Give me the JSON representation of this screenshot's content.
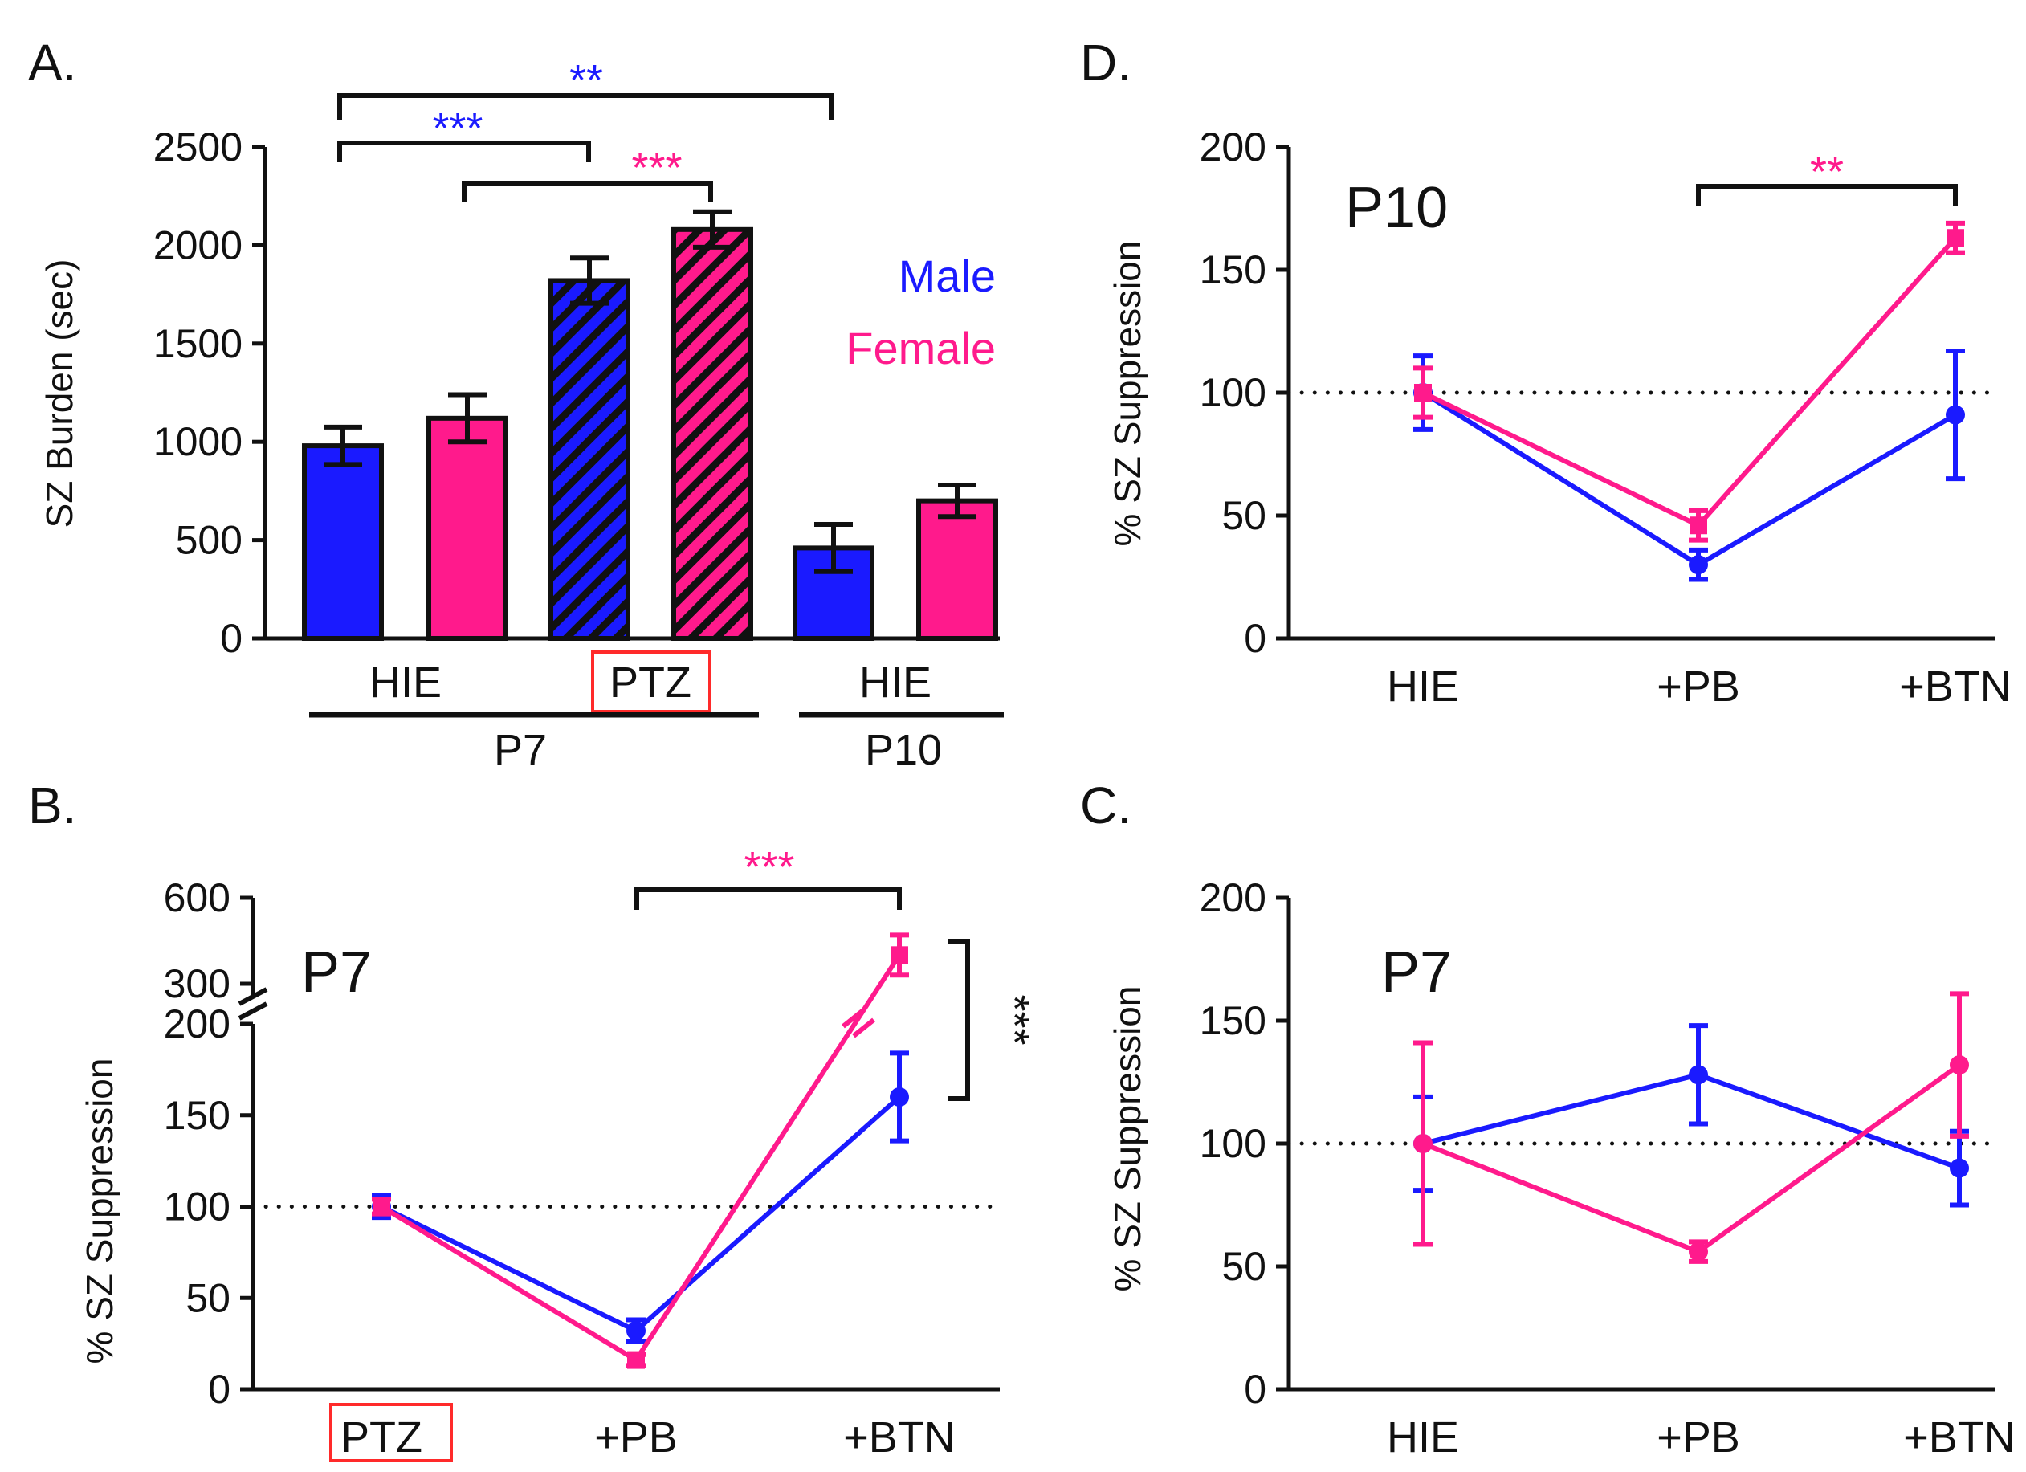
{
  "colors": {
    "male": "#1a1aff",
    "female": "#ff1a8c",
    "axis": "#111111",
    "highlight": "#ff2a2a"
  },
  "chart_data": [
    {
      "panel": "A.",
      "type": "bar",
      "ylabel": "SZ Burden (sec)",
      "ylim": [
        0,
        2500
      ],
      "yticks": [
        0,
        500,
        1000,
        1500,
        2000,
        2500
      ],
      "legend": {
        "male": "Male",
        "female": "Female",
        "placement": "right"
      },
      "bars": [
        {
          "group": "HIE",
          "age": "P7",
          "sex": "male",
          "value": 980,
          "err": 95,
          "hatched": false
        },
        {
          "group": "HIE",
          "age": "P7",
          "sex": "female",
          "value": 1120,
          "err": 120,
          "hatched": false
        },
        {
          "group": "PTZ",
          "age": "P7",
          "sex": "male",
          "value": 1820,
          "err": 115,
          "hatched": true
        },
        {
          "group": "PTZ",
          "age": "P7",
          "sex": "female",
          "value": 2080,
          "err": 90,
          "hatched": true
        },
        {
          "group": "HIE",
          "age": "P10",
          "sex": "male",
          "value": 460,
          "err": 120,
          "hatched": false
        },
        {
          "group": "HIE",
          "age": "P10",
          "sex": "female",
          "value": 700,
          "err": 80,
          "hatched": false
        }
      ],
      "group_labels": [
        "HIE",
        "PTZ",
        "HIE"
      ],
      "age_labels": [
        "P7",
        "P10"
      ],
      "significance": [
        {
          "label": "**",
          "color": "male"
        },
        {
          "label": "***",
          "color": "male"
        },
        {
          "label": "***",
          "color": "female"
        }
      ]
    },
    {
      "panel": "B.",
      "type": "line",
      "inset_label": "P7",
      "ylabel": "% SZ Suppression",
      "ylim": [
        0,
        200
      ],
      "break_ticks": [
        300,
        600
      ],
      "yticks": [
        0,
        50,
        100,
        150,
        200
      ],
      "categories": [
        "PTZ",
        "+PB",
        "+BTN"
      ],
      "reference_line": 100,
      "series": [
        {
          "name": "Male",
          "color": "male",
          "values": [
            100,
            32,
            160
          ],
          "err": [
            6,
            6,
            24
          ]
        },
        {
          "name": "Female",
          "color": "female",
          "values": [
            100,
            16,
            400
          ],
          "err": [
            4,
            3,
            70
          ]
        }
      ],
      "significance": [
        {
          "label": "***",
          "color": "female"
        },
        {
          "label": "***",
          "color": "axis"
        }
      ]
    },
    {
      "panel": "D.",
      "type": "line",
      "inset_label": "P10",
      "ylabel": "% SZ Suppression",
      "ylim": [
        0,
        200
      ],
      "yticks": [
        0,
        50,
        100,
        150,
        200
      ],
      "categories": [
        "HIE",
        "+PB",
        "+BTN"
      ],
      "reference_line": 100,
      "series": [
        {
          "name": "Male",
          "color": "male",
          "values": [
            100,
            30,
            91
          ],
          "err": [
            15,
            6,
            26
          ]
        },
        {
          "name": "Female",
          "color": "female",
          "values": [
            100,
            46,
            163
          ],
          "err": [
            10,
            6,
            6
          ]
        }
      ],
      "significance": [
        {
          "label": "**",
          "color": "female"
        }
      ]
    },
    {
      "panel": "C.",
      "type": "line",
      "inset_label": "P7",
      "ylabel": "% SZ Suppression",
      "ylim": [
        0,
        200
      ],
      "yticks": [
        0,
        50,
        100,
        150,
        200
      ],
      "categories": [
        "HIE",
        "+PB",
        "+BTN"
      ],
      "reference_line": 100,
      "series": [
        {
          "name": "Male",
          "color": "male",
          "values": [
            100,
            128,
            90
          ],
          "err": [
            19,
            20,
            15
          ]
        },
        {
          "name": "Female",
          "color": "female",
          "values": [
            100,
            56,
            132
          ],
          "err": [
            41,
            4,
            29
          ]
        }
      ],
      "significance": []
    }
  ]
}
